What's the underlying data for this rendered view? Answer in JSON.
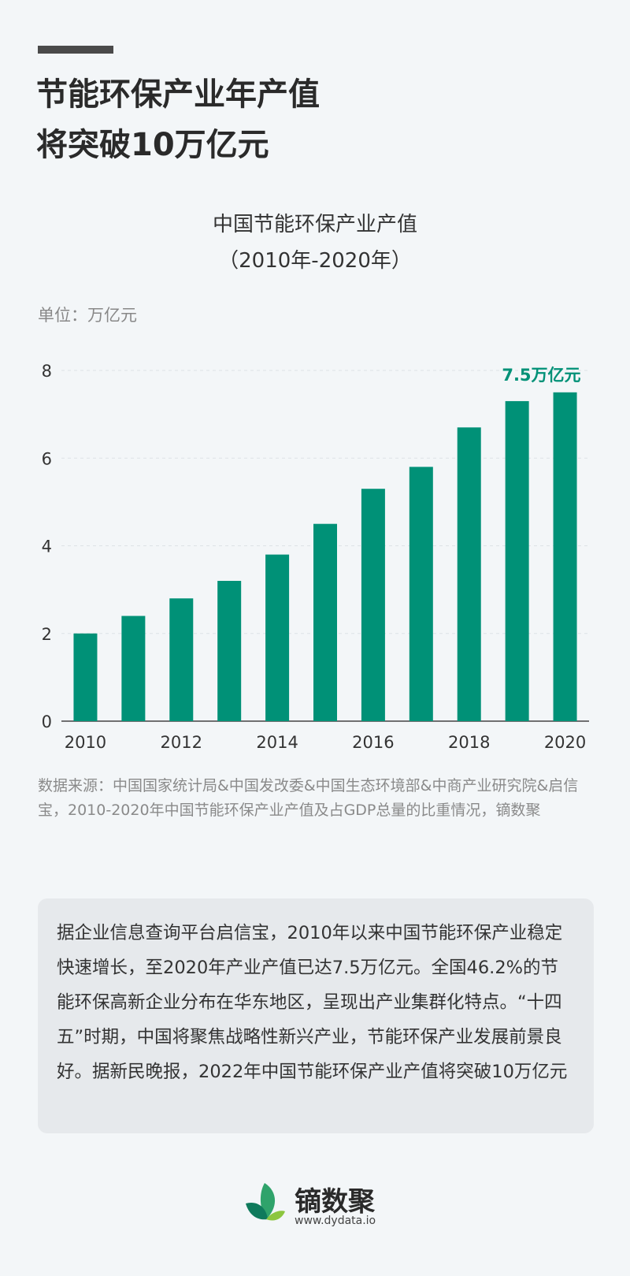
{
  "headline": {
    "line1": "节能环保产业年产值",
    "line2": "将突破10万亿元"
  },
  "chart_title": {
    "line1": "中国节能环保产业产值",
    "line2": "（2010年-2020年）"
  },
  "unit_label": "单位：万亿元",
  "chart_data": {
    "type": "bar",
    "title": "中国节能环保产业产值",
    "subtitle": "（2010年-2020年）",
    "categories": [
      "2010",
      "2011",
      "2012",
      "2013",
      "2014",
      "2015",
      "2016",
      "2017",
      "2018",
      "2019",
      "2020"
    ],
    "values": [
      2.0,
      2.4,
      2.8,
      3.2,
      3.8,
      4.5,
      5.3,
      5.8,
      6.7,
      7.3,
      7.5
    ],
    "x_tick_labels": [
      "2010",
      "2012",
      "2014",
      "2016",
      "2018",
      "2020"
    ],
    "y_tick_labels": [
      "0",
      "2",
      "4",
      "6",
      "8"
    ],
    "ylim": [
      0,
      8
    ],
    "grid": true,
    "bar_color": "#009177",
    "annotation": {
      "text": "7.5万亿元",
      "category": "2020"
    }
  },
  "source_text": "数据来源：中国国家统计局&中国发改委&中国生态环境部&中商产业研究院&启信宝，2010-2020年中国节能环保产业产值及占GDP总量的比重情况，镝数聚",
  "body_text": "据企业信息查询平台启信宝，2010年以来中国节能环保产业稳定快速增长，至2020年产业产值已达7.5万亿元。全国46.2%的节能环保高新企业分布在华东地区，呈现出产业集群化特点。“十四五”时期，中国将聚焦战略性新兴产业，节能环保产业发展前景良好。据新民晚报，2022年中国节能环保产业产值将突破10万亿元",
  "logo": {
    "name": "镝数聚",
    "url": "www.dydata.io"
  },
  "colors": {
    "accent": "#009177",
    "background": "#f3f6f8",
    "card": "#e6e9ec"
  }
}
